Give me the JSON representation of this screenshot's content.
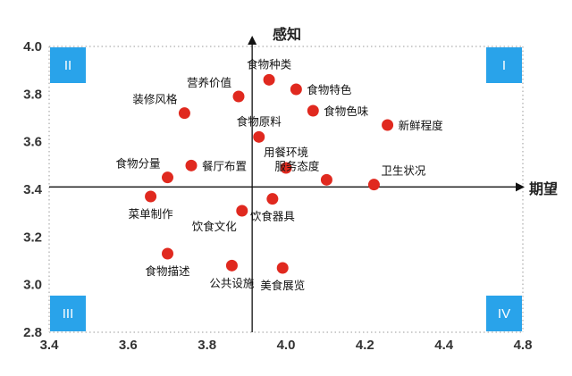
{
  "chart_data": {
    "type": "scatter",
    "xlabel": "期望",
    "ylabel": "感知",
    "xlim": [
      3.4,
      4.8
    ],
    "ylim": [
      2.8,
      4.0
    ],
    "x_ticks": [
      "3.4",
      "3.6",
      "3.8",
      "4.0",
      "4.2",
      "4.4",
      "4.8"
    ],
    "y_ticks": [
      "2.8",
      "3.0",
      "3.2",
      "3.4",
      "3.6",
      "3.8",
      "4.0"
    ],
    "crosshair": {
      "x": 4.0,
      "y": 3.41
    },
    "grid": "dotted",
    "point_color": "#e0291f",
    "quadrant_color": "#29a3ea",
    "quadrants": [
      {
        "id": "II",
        "label": "II",
        "corner": "top-left"
      },
      {
        "id": "I",
        "label": "I",
        "corner": "top-right"
      },
      {
        "id": "III",
        "label": "III",
        "corner": "bottom-left"
      },
      {
        "id": "IV",
        "label": "IV",
        "corner": "bottom-right"
      }
    ],
    "points": [
      {
        "label": "食物种类",
        "x": 4.05,
        "y": 3.86,
        "label_side": "above"
      },
      {
        "label": "食物特色",
        "x": 4.13,
        "y": 3.82,
        "label_side": "right"
      },
      {
        "label": "营养价值",
        "x": 3.96,
        "y": 3.79,
        "label_side": "above-left"
      },
      {
        "label": "装修风格",
        "x": 3.8,
        "y": 3.72,
        "label_side": "above-left"
      },
      {
        "label": "食物色味",
        "x": 4.18,
        "y": 3.73,
        "label_side": "right"
      },
      {
        "label": "新鲜程度",
        "x": 4.4,
        "y": 3.67,
        "label_side": "right"
      },
      {
        "label": "食物原料",
        "x": 4.02,
        "y": 3.62,
        "label_side": "above"
      },
      {
        "label": "用餐环境",
        "x": 4.1,
        "y": 3.49,
        "label_side": "above"
      },
      {
        "label": "服务态度",
        "x": 4.22,
        "y": 3.44,
        "label_side": "above-left"
      },
      {
        "label": "卫生状况",
        "x": 4.36,
        "y": 3.42,
        "label_side": "above-right"
      },
      {
        "label": "餐厅布置",
        "x": 3.82,
        "y": 3.5,
        "label_side": "right"
      },
      {
        "label": "食物分量",
        "x": 3.75,
        "y": 3.45,
        "label_side": "above-left"
      },
      {
        "label": "菜单制作",
        "x": 3.7,
        "y": 3.37,
        "label_side": "below"
      },
      {
        "label": "饮食器具",
        "x": 4.06,
        "y": 3.36,
        "label_side": "below"
      },
      {
        "label": "饮食文化",
        "x": 3.97,
        "y": 3.31,
        "label_side": "below-left"
      },
      {
        "label": "食物描述",
        "x": 3.75,
        "y": 3.13,
        "label_side": "below"
      },
      {
        "label": "公共设施",
        "x": 3.94,
        "y": 3.08,
        "label_side": "below"
      },
      {
        "label": "美食展览",
        "x": 4.09,
        "y": 3.07,
        "label_side": "below"
      }
    ]
  }
}
